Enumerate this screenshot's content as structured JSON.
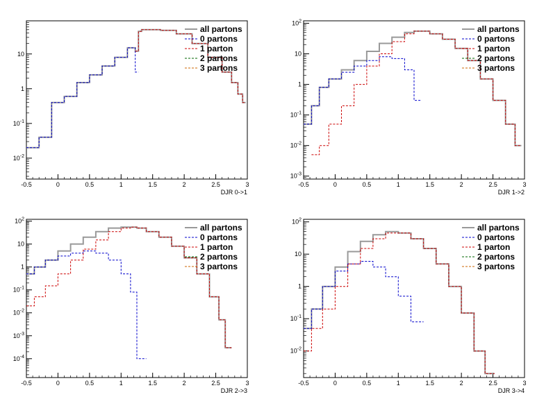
{
  "chart_data": [
    {
      "type": "line",
      "xlabel": "DJR 0->1",
      "ylabel": "",
      "xlim": [
        -0.5,
        3
      ],
      "ylim": [
        0.0025,
        90
      ],
      "log_y": true,
      "x_ticks": [
        "-0.5",
        "0",
        "0.5",
        "1",
        "1.5",
        "2",
        "2.5",
        "3"
      ],
      "y_ticks": [
        {
          "value": 0.01,
          "base": "10",
          "exp": "-2"
        },
        {
          "value": 0.1,
          "base": "10",
          "exp": "-1"
        },
        {
          "value": 1,
          "label": "1"
        },
        {
          "value": 10,
          "label": "10"
        }
      ],
      "legend_position": "top-right",
      "x": [
        -0.4,
        -0.2,
        0.0,
        0.2,
        0.4,
        0.6,
        0.8,
        1.0,
        1.2,
        1.25,
        1.3,
        1.35,
        1.5,
        1.75,
        2.0,
        2.25,
        2.5,
        2.7,
        2.8,
        2.9,
        2.95
      ],
      "series": [
        {
          "name": "all partons",
          "color": "#999999",
          "values": [
            0.02,
            0.04,
            0.4,
            0.6,
            1.5,
            2.5,
            4.5,
            8,
            15,
            12,
            45,
            50,
            50,
            48,
            38,
            20,
            8,
            3,
            1.5,
            0.7,
            0.4
          ]
        },
        {
          "name": "0 partons",
          "color": "#0000cc",
          "values": [
            0.02,
            0.04,
            0.4,
            0.6,
            1.5,
            2.5,
            4.5,
            8,
            15,
            3,
            null,
            null,
            null,
            null,
            null,
            null,
            null,
            null,
            null,
            null,
            null
          ]
        },
        {
          "name": "1 parton",
          "color": "#cc0000",
          "values": [
            null,
            null,
            null,
            null,
            null,
            null,
            null,
            null,
            null,
            12,
            45,
            50,
            50,
            48,
            38,
            20,
            8,
            3,
            1.5,
            0.7,
            0.4
          ]
        },
        {
          "name": "2 partons",
          "color": "#006600",
          "values": [
            null,
            null,
            null,
            null,
            null,
            null,
            null,
            null,
            null,
            null,
            null,
            null,
            null,
            null,
            null,
            null,
            null,
            null,
            null,
            null,
            null
          ]
        },
        {
          "name": "3 partons",
          "color": "#cc6600",
          "values": [
            null,
            null,
            null,
            null,
            null,
            null,
            null,
            null,
            null,
            null,
            null,
            null,
            null,
            null,
            null,
            null,
            null,
            null,
            null,
            null,
            null
          ]
        }
      ]
    },
    {
      "type": "line",
      "xlabel": "DJR 1->2",
      "ylabel": "",
      "xlim": [
        -0.5,
        3
      ],
      "ylim": [
        0.0008,
        120
      ],
      "log_y": true,
      "x_ticks": [
        "-0.5",
        "0",
        "0.5",
        "1",
        "1.5",
        "2",
        "2.5",
        "3"
      ],
      "y_ticks": [
        {
          "value": 0.001,
          "base": "10",
          "exp": "-3"
        },
        {
          "value": 0.01,
          "base": "10",
          "exp": "-2"
        },
        {
          "value": 0.1,
          "base": "10",
          "exp": "-1"
        },
        {
          "value": 1,
          "label": "1"
        },
        {
          "value": 10,
          "label": "10"
        },
        {
          "value": 100,
          "base": "10",
          "exp": "2"
        }
      ],
      "legend_position": "top-right",
      "x": [
        -0.45,
        -0.3,
        -0.2,
        0.0,
        0.2,
        0.4,
        0.6,
        0.8,
        1.0,
        1.2,
        1.3,
        1.4,
        1.6,
        1.8,
        2.0,
        2.2,
        2.4,
        2.6,
        2.8,
        2.9
      ],
      "series": [
        {
          "name": "all partons",
          "color": "#999999",
          "values": [
            0.05,
            0.2,
            0.8,
            1.5,
            3,
            6,
            12,
            22,
            35,
            50,
            55,
            55,
            45,
            30,
            15,
            6,
            1.5,
            0.3,
            0.05,
            0.01
          ]
        },
        {
          "name": "0 partons",
          "color": "#0000cc",
          "values": [
            0.05,
            0.2,
            0.8,
            1.5,
            2.5,
            4,
            6,
            8,
            7,
            3,
            0.3,
            null,
            null,
            null,
            null,
            null,
            null,
            null,
            null,
            null
          ]
        },
        {
          "name": "1 parton",
          "color": "#cc0000",
          "values": [
            null,
            0.005,
            0.01,
            0.05,
            0.2,
            1,
            4,
            10,
            25,
            45,
            55,
            55,
            45,
            30,
            15,
            6,
            1.5,
            0.3,
            0.05,
            0.01
          ]
        },
        {
          "name": "2 partons",
          "color": "#006600",
          "values": [
            null,
            null,
            null,
            null,
            null,
            null,
            null,
            null,
            null,
            null,
            null,
            null,
            null,
            null,
            null,
            null,
            null,
            null,
            null,
            null
          ]
        },
        {
          "name": "3 partons",
          "color": "#cc6600",
          "values": [
            null,
            null,
            null,
            null,
            null,
            null,
            null,
            null,
            null,
            null,
            null,
            null,
            null,
            null,
            null,
            null,
            null,
            null,
            null,
            null
          ]
        }
      ]
    },
    {
      "type": "line",
      "xlabel": "DJR 2->3",
      "ylabel": "",
      "xlim": [
        -0.5,
        3
      ],
      "ylim": [
        1.5e-05,
        120
      ],
      "log_y": true,
      "x_ticks": [
        "-0.5",
        "0",
        "0.5",
        "1",
        "1.5",
        "2",
        "2.5",
        "3"
      ],
      "y_ticks": [
        {
          "value": 0.0001,
          "base": "10",
          "exp": "-4"
        },
        {
          "value": 0.001,
          "base": "10",
          "exp": "-3"
        },
        {
          "value": 0.01,
          "base": "10",
          "exp": "-2"
        },
        {
          "value": 0.1,
          "base": "10",
          "exp": "-1"
        },
        {
          "value": 1,
          "label": "1"
        },
        {
          "value": 10,
          "label": "10"
        },
        {
          "value": 100,
          "base": "10",
          "exp": "2"
        }
      ],
      "legend_position": "top-right",
      "x": [
        -0.45,
        -0.3,
        -0.1,
        0.1,
        0.3,
        0.5,
        0.7,
        0.9,
        1.1,
        1.2,
        1.3,
        1.5,
        1.7,
        1.9,
        2.1,
        2.3,
        2.5,
        2.6,
        2.7
      ],
      "series": [
        {
          "name": "all partons",
          "color": "#999999",
          "values": [
            0.5,
            1,
            2,
            5,
            10,
            20,
            35,
            50,
            55,
            55,
            50,
            35,
            20,
            8,
            2.5,
            0.5,
            0.05,
            0.005,
            0.0003
          ]
        },
        {
          "name": "0 partons",
          "color": "#0000cc",
          "values": [
            0.5,
            1,
            2,
            3,
            4,
            5,
            4,
            2,
            0.5,
            0.08,
            0.0001,
            null,
            null,
            null,
            null,
            null,
            null,
            null,
            null
          ]
        },
        {
          "name": "1 parton",
          "color": "#cc0000",
          "values": [
            0.02,
            0.05,
            0.15,
            0.5,
            2,
            6,
            15,
            35,
            50,
            55,
            50,
            35,
            20,
            8,
            2.5,
            0.5,
            0.05,
            0.005,
            0.0003
          ]
        },
        {
          "name": "2 partons",
          "color": "#006600",
          "values": [
            null,
            null,
            null,
            null,
            null,
            null,
            null,
            null,
            null,
            null,
            null,
            null,
            null,
            null,
            null,
            null,
            null,
            null,
            null
          ]
        },
        {
          "name": "3 partons",
          "color": "#cc6600",
          "values": [
            null,
            null,
            null,
            null,
            null,
            null,
            null,
            null,
            null,
            null,
            null,
            null,
            null,
            null,
            null,
            null,
            null,
            null,
            null
          ]
        }
      ]
    },
    {
      "type": "line",
      "xlabel": "DJR 3->4",
      "ylabel": "",
      "xlim": [
        -0.5,
        3
      ],
      "ylim": [
        0.0015,
        120
      ],
      "log_y": true,
      "x_ticks": [
        "-0.5",
        "0",
        "0.5",
        "1",
        "1.5",
        "2",
        "2.5",
        "3"
      ],
      "y_ticks": [
        {
          "value": 0.01,
          "base": "10",
          "exp": "-2"
        },
        {
          "value": 0.1,
          "base": "10",
          "exp": "-1"
        },
        {
          "value": 1,
          "label": "1"
        },
        {
          "value": 10,
          "label": "10"
        },
        {
          "value": 100,
          "base": "10",
          "exp": "2"
        }
      ],
      "legend_position": "top-right",
      "x": [
        -0.45,
        -0.3,
        -0.1,
        0.1,
        0.3,
        0.5,
        0.7,
        0.9,
        1.1,
        1.3,
        1.5,
        1.7,
        1.9,
        2.1,
        2.3,
        2.45
      ],
      "series": [
        {
          "name": "all partons",
          "color": "#999999",
          "values": [
            0.05,
            0.2,
            1,
            4,
            12,
            25,
            40,
            50,
            45,
            30,
            15,
            5,
            1,
            0.15,
            0.01,
            0.002
          ]
        },
        {
          "name": "0 partons",
          "color": "#0000cc",
          "values": [
            0.05,
            0.2,
            1,
            3,
            5,
            6,
            4,
            2,
            0.5,
            0.08,
            null,
            null,
            null,
            null,
            null,
            null
          ]
        },
        {
          "name": "1 parton",
          "color": "#cc0000",
          "values": [
            0.01,
            0.05,
            0.2,
            1,
            5,
            15,
            30,
            45,
            45,
            30,
            15,
            5,
            1,
            0.15,
            0.01,
            0.002
          ]
        },
        {
          "name": "2 partons",
          "color": "#006600",
          "values": [
            null,
            null,
            null,
            null,
            null,
            null,
            null,
            null,
            null,
            null,
            null,
            null,
            null,
            null,
            null,
            null
          ]
        },
        {
          "name": "3 partons",
          "color": "#cc6600",
          "values": [
            null,
            null,
            null,
            null,
            null,
            null,
            null,
            null,
            null,
            null,
            null,
            null,
            null,
            null,
            null,
            null
          ]
        }
      ]
    }
  ]
}
